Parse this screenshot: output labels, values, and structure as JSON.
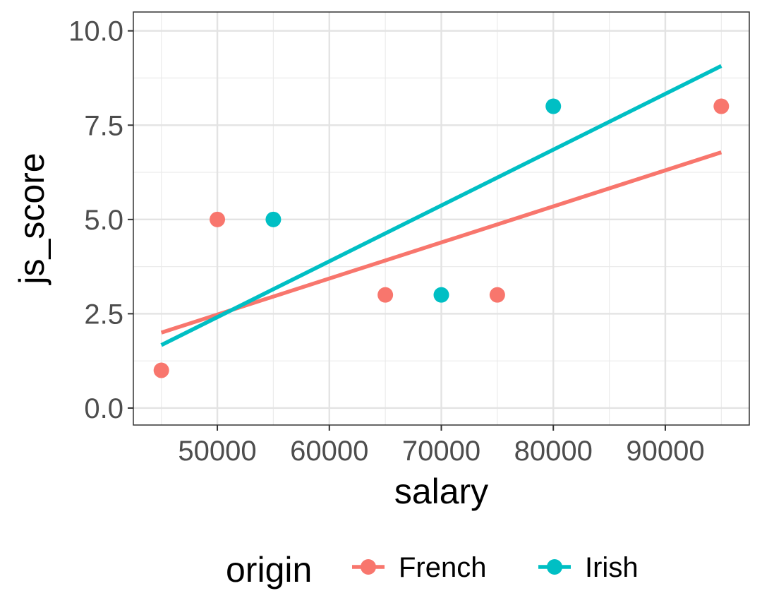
{
  "chart_data": {
    "type": "scatter",
    "xlabel": "salary",
    "ylabel": "js_score",
    "xlim": [
      42500,
      97500
    ],
    "ylim": [
      -0.45,
      10.5
    ],
    "x_ticks": [
      50000,
      60000,
      70000,
      80000,
      90000
    ],
    "x_tick_labels": [
      "50000",
      "60000",
      "70000",
      "80000",
      "90000"
    ],
    "x_minor_ticks": [
      45000,
      55000,
      65000,
      75000,
      85000,
      95000
    ],
    "y_ticks": [
      0,
      2.5,
      5,
      7.5,
      10
    ],
    "y_tick_labels": [
      "0.0",
      "2.5",
      "5.0",
      "7.5",
      "10.0"
    ],
    "y_minor_ticks": [
      1.25,
      3.75,
      6.25,
      8.75
    ],
    "grid": true,
    "legend": {
      "title": "origin",
      "position": "bottom",
      "entries": [
        "French",
        "Irish"
      ]
    },
    "series": [
      {
        "name": "French",
        "color": "#F8766D",
        "points": [
          {
            "x": 45000,
            "y": 1
          },
          {
            "x": 50000,
            "y": 5
          },
          {
            "x": 65000,
            "y": 3
          },
          {
            "x": 75000,
            "y": 3
          },
          {
            "x": 95000,
            "y": 8
          }
        ],
        "fit_line": [
          {
            "x": 45000,
            "y": 2.0
          },
          {
            "x": 95000,
            "y": 6.78
          }
        ]
      },
      {
        "name": "Irish",
        "color": "#00BFC4",
        "points": [
          {
            "x": 55000,
            "y": 5
          },
          {
            "x": 70000,
            "y": 3
          },
          {
            "x": 80000,
            "y": 8
          }
        ],
        "fit_line": [
          {
            "x": 45000,
            "y": 1.67
          },
          {
            "x": 95000,
            "y": 9.07
          }
        ]
      }
    ]
  }
}
